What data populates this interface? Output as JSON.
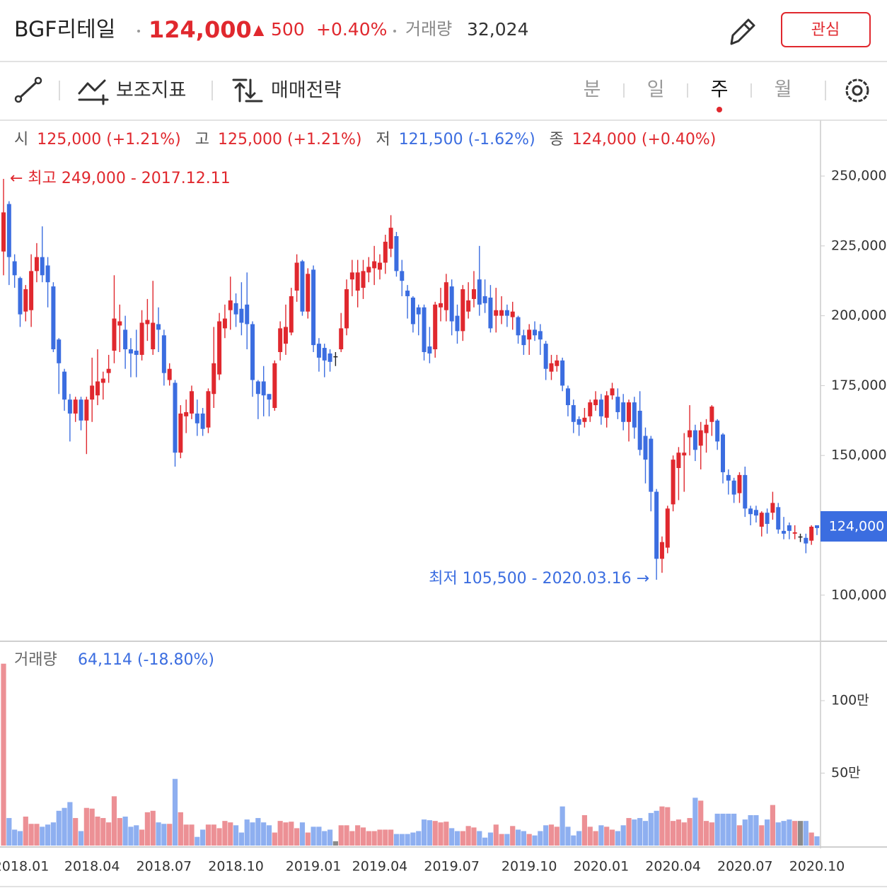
{
  "header": {
    "name": "BGF리테일",
    "price": "124,000",
    "arrow": "▲",
    "change": "500",
    "change_pct": "+0.40%",
    "volume_label": "거래량",
    "volume": "32,024",
    "button": "관심"
  },
  "toolbar": {
    "indicators": "보조지표",
    "strategy": "매매전략",
    "periods": [
      "분",
      "일",
      "주",
      "월"
    ]
  },
  "chart_data": {
    "type": "candlestick",
    "ohlc": [
      {
        "label": "시",
        "value": "125,000 (+1.21%)",
        "color": "#e0282e"
      },
      {
        "label": "고",
        "value": "125,000 (+1.21%)",
        "color": "#e0282e"
      },
      {
        "label": "저",
        "value": "121,500 (-1.62%)",
        "color": "#3b6de0"
      },
      {
        "label": "종",
        "value": "124,000 (+0.40%)",
        "color": "#e0282e"
      }
    ],
    "annotations": {
      "high": "← 최고 249,000 - 2017.12.11",
      "low": "최저 105,500 - 2020.03.16 →"
    },
    "last_price_label": "124,000",
    "volume_title": "거래량",
    "volume_label": "64,114 (-18.80%)",
    "up_color": "#e0282e",
    "down_color": "#3b6de0",
    "up_volume_color": "#ec9095",
    "down_volume_color": "#8eaff0",
    "flat_volume_color": "#8a8a8a",
    "ylim": [
      84000,
      270000
    ],
    "yticks": [
      {
        "value": 250000,
        "label": "250,000"
      },
      {
        "value": 225000,
        "label": "225,000"
      },
      {
        "value": 200000,
        "label": "200,000"
      },
      {
        "value": 175000,
        "label": "175,000"
      },
      {
        "value": 150000,
        "label": "150,000"
      },
      {
        "value": 100000,
        "label": "100,000"
      }
    ],
    "volume_ylim": [
      0,
      1400000
    ],
    "volume_yticks": [
      {
        "value": 1000000,
        "label": "100만"
      },
      {
        "value": 500000,
        "label": "50만"
      }
    ],
    "categories": [
      null,
      null,
      null,
      "2018.01",
      null,
      null,
      null,
      null,
      null,
      null,
      null,
      null,
      null,
      null,
      null,
      null,
      "2018.04",
      null,
      null,
      null,
      null,
      null,
      null,
      null,
      null,
      null,
      null,
      null,
      null,
      "2018.07",
      null,
      null,
      null,
      null,
      null,
      null,
      null,
      null,
      null,
      null,
      null,
      null,
      "2018.10",
      null,
      null,
      null,
      null,
      null,
      null,
      null,
      null,
      null,
      null,
      null,
      null,
      null,
      "2019.01",
      null,
      null,
      null,
      null,
      null,
      null,
      null,
      null,
      null,
      null,
      null,
      "2019.04",
      null,
      null,
      null,
      null,
      null,
      null,
      null,
      null,
      null,
      null,
      null,
      null,
      "2019.07",
      null,
      null,
      null,
      null,
      null,
      null,
      null,
      null,
      null,
      null,
      null,
      null,
      null,
      "2019.10",
      null,
      null,
      null,
      null,
      null,
      null,
      null,
      null,
      null,
      null,
      null,
      null,
      "2020.01",
      null,
      null,
      null,
      null,
      null,
      null,
      null,
      null,
      null,
      null,
      null,
      null,
      "2020.04",
      null,
      null,
      null,
      null,
      null,
      null,
      null,
      null,
      null,
      null,
      null,
      null,
      "2020.07",
      null,
      null,
      null,
      null,
      null,
      null,
      null,
      null,
      null,
      null,
      null,
      null,
      "2020.10"
    ],
    "open": [
      223000,
      240000,
      219500,
      213500,
      201500,
      202000,
      216000,
      221000,
      218000,
      210500,
      191500,
      180000,
      170000,
      165000,
      170000,
      162500,
      170000,
      171500,
      176000,
      179500,
      187500,
      196500,
      195000,
      188000,
      187500,
      186000,
      197000,
      188000,
      197000,
      193000,
      177000,
      176000,
      151000,
      164000,
      165000,
      165000,
      165000,
      160000,
      172000,
      179000,
      195500,
      202000,
      204500,
      202500,
      204000,
      197000,
      176500,
      176500,
      172000,
      167000,
      187000,
      190000,
      194000,
      209000,
      219500,
      201500,
      216500,
      190000,
      188500,
      186500,
      185500,
      188000,
      195500,
      213000,
      209000,
      210000,
      215500,
      217000,
      216500,
      219000,
      224000,
      228500,
      216000,
      209000,
      206500,
      203000,
      203000,
      189000,
      188000,
      203000,
      202000,
      210500,
      200000,
      194500,
      201500,
      206000,
      213000,
      207000,
      206500,
      200000,
      200000,
      202000,
      199500,
      199500,
      193000,
      191500,
      195000,
      194500,
      190000,
      180000,
      182000,
      184000,
      174000,
      168000,
      163000,
      162000,
      164000,
      168000,
      170000,
      163500,
      171500,
      171000,
      169000,
      162000,
      169000,
      166000,
      157000,
      156000,
      137000,
      113000,
      117000,
      132500,
      145500,
      150000,
      156500,
      159000,
      153500,
      158000,
      162000,
      162500,
      157500,
      143000,
      141000,
      136500,
      143000,
      131000,
      130500,
      124500,
      129500,
      129500,
      131500,
      123000,
      125000,
      122000,
      121000,
      120500,
      119500,
      125000
    ],
    "high": [
      249000,
      241000,
      222000,
      214000,
      211000,
      222000,
      226000,
      232000,
      221000,
      212000,
      192000,
      181000,
      172000,
      171000,
      171000,
      171000,
      185000,
      188000,
      180000,
      186000,
      214500,
      204000,
      200000,
      192000,
      195000,
      202000,
      206000,
      212500,
      203000,
      195000,
      183000,
      177000,
      168000,
      170000,
      175000,
      170000,
      167000,
      174000,
      196000,
      201000,
      204000,
      214000,
      208000,
      212000,
      215500,
      198000,
      177000,
      182000,
      172000,
      184000,
      198000,
      204000,
      210000,
      222000,
      220000,
      217000,
      218000,
      192000,
      190000,
      188000,
      187000,
      201000,
      213000,
      220000,
      220000,
      220000,
      221000,
      225000,
      222000,
      229000,
      236000,
      230000,
      220000,
      211000,
      207000,
      204000,
      204000,
      196000,
      205000,
      210000,
      215000,
      213000,
      204000,
      211000,
      212000,
      216000,
      225000,
      213000,
      211000,
      210000,
      207000,
      204000,
      205000,
      200000,
      195000,
      197000,
      198000,
      197000,
      191000,
      186000,
      186000,
      185000,
      175000,
      170000,
      164000,
      167000,
      170000,
      173000,
      172000,
      173000,
      176000,
      174000,
      172000,
      170000,
      171000,
      173000,
      160000,
      157000,
      138000,
      121000,
      132000,
      150000,
      153000,
      158000,
      168000,
      161000,
      162000,
      163000,
      168000,
      163000,
      158000,
      145000,
      142000,
      144000,
      146000,
      132000,
      132000,
      130000,
      131000,
      137000,
      133000,
      128000,
      126000,
      125000,
      122000,
      122000,
      125000,
      125000
    ],
    "low": [
      214500,
      211000,
      210000,
      196000,
      198000,
      196000,
      212000,
      212000,
      203000,
      187000,
      172000,
      166000,
      155000,
      162000,
      159000,
      150500,
      162000,
      168000,
      170000,
      176000,
      183000,
      187000,
      181000,
      178000,
      178000,
      184000,
      191000,
      186000,
      187000,
      175000,
      175000,
      146000,
      149000,
      158000,
      163000,
      157000,
      157000,
      158000,
      167000,
      177000,
      192000,
      195000,
      196000,
      193000,
      188000,
      171000,
      163000,
      164000,
      164000,
      166000,
      184000,
      186000,
      193000,
      205000,
      200000,
      199000,
      187000,
      180000,
      178000,
      180000,
      182000,
      187000,
      193000,
      207000,
      203000,
      206000,
      212000,
      211000,
      213000,
      215000,
      221000,
      214000,
      207000,
      199000,
      194000,
      193000,
      184000,
      183000,
      185000,
      198000,
      198000,
      193000,
      190000,
      191000,
      199000,
      203000,
      200000,
      201000,
      194000,
      194000,
      197000,
      196000,
      195000,
      190000,
      186000,
      186000,
      191000,
      186000,
      177000,
      177000,
      180000,
      173000,
      164000,
      158000,
      157000,
      160000,
      162000,
      166000,
      161000,
      160000,
      170000,
      163000,
      159000,
      155000,
      156000,
      150000,
      140000,
      130000,
      105500,
      108000,
      115000,
      130000,
      134000,
      137000,
      150000,
      148000,
      145000,
      151000,
      157000,
      152000,
      140000,
      136000,
      133000,
      133000,
      128000,
      125000,
      126000,
      121000,
      122000,
      127000,
      122000,
      120000,
      120000,
      120000,
      119000,
      115000,
      118000,
      121500
    ],
    "close": [
      237000,
      221000,
      214500,
      200500,
      209500,
      216000,
      221000,
      214500,
      212000,
      188000,
      183000,
      170000,
      165000,
      170000,
      162500,
      170000,
      175000,
      176500,
      177500,
      181000,
      199000,
      198000,
      188000,
      186500,
      186000,
      197500,
      198500,
      197500,
      195000,
      179500,
      181000,
      151000,
      165000,
      165500,
      173000,
      161500,
      159500,
      173000,
      183000,
      198000,
      199000,
      205500,
      200500,
      197500,
      197000,
      177000,
      172000,
      171500,
      170000,
      183000,
      195500,
      196000,
      207000,
      219000,
      201500,
      215000,
      189500,
      185000,
      184000,
      183500,
      185500,
      195500,
      209500,
      215500,
      215500,
      216000,
      217500,
      219500,
      219000,
      226500,
      231500,
      216000,
      212500,
      207000,
      197000,
      200500,
      187000,
      186500,
      204000,
      204500,
      212000,
      198000,
      194500,
      209500,
      205500,
      209500,
      204000,
      204500,
      195500,
      202000,
      202000,
      200000,
      201500,
      193000,
      189500,
      195000,
      193000,
      191500,
      181000,
      183000,
      184000,
      175000,
      168000,
      162000,
      161000,
      163500,
      169000,
      170000,
      164000,
      171500,
      174000,
      165500,
      162000,
      169000,
      160000,
      152000,
      148500,
      137000,
      113000,
      119000,
      131000,
      148500,
      151000,
      151000,
      159000,
      152000,
      159000,
      161000,
      167500,
      155000,
      144000,
      141000,
      136000,
      143000,
      131000,
      129000,
      128500,
      129500,
      125500,
      133000,
      123500,
      122000,
      123000,
      122500,
      121000,
      118500,
      124500,
      124000
    ],
    "volume": [
      1255000,
      190000,
      110000,
      100000,
      200000,
      150000,
      150000,
      130000,
      145000,
      160000,
      240000,
      260000,
      300000,
      190000,
      100000,
      260000,
      255000,
      200000,
      190000,
      160000,
      340000,
      190000,
      200000,
      130000,
      140000,
      110000,
      230000,
      240000,
      160000,
      150000,
      150000,
      460000,
      230000,
      145000,
      145000,
      60000,
      110000,
      145000,
      145000,
      120000,
      170000,
      160000,
      140000,
      90000,
      180000,
      160000,
      190000,
      160000,
      140000,
      90000,
      170000,
      160000,
      165000,
      120000,
      160000,
      90000,
      130000,
      130000,
      100000,
      110000,
      30000,
      140000,
      140000,
      100000,
      140000,
      125000,
      100000,
      100000,
      110000,
      110000,
      110000,
      80000,
      80000,
      80000,
      90000,
      100000,
      180000,
      175000,
      170000,
      160000,
      165000,
      120000,
      100000,
      100000,
      135000,
      125000,
      100000,
      55000,
      90000,
      145000,
      80000,
      80000,
      135000,
      110000,
      100000,
      80000,
      70000,
      100000,
      140000,
      145000,
      130000,
      270000,
      130000,
      70000,
      100000,
      210000,
      130000,
      100000,
      140000,
      130000,
      110000,
      100000,
      140000,
      190000,
      180000,
      190000,
      170000,
      225000,
      240000,
      270000,
      265000,
      170000,
      180000,
      160000,
      190000,
      330000,
      310000,
      170000,
      160000,
      220000,
      220000,
      220000,
      220000,
      140000,
      180000,
      210000,
      210000,
      140000,
      180000,
      280000,
      160000,
      170000,
      180000,
      170000,
      170000,
      170000,
      90000,
      64114
    ]
  }
}
